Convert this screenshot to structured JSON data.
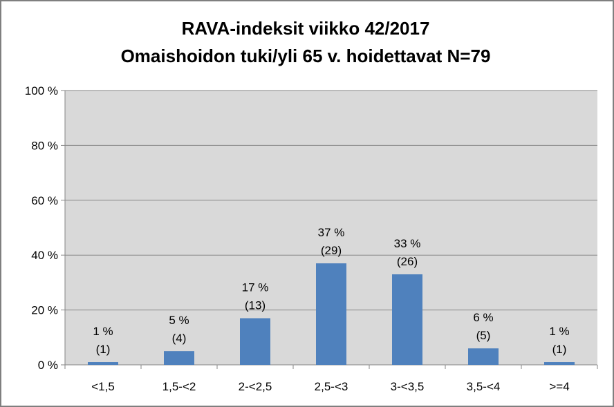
{
  "chart_data": {
    "type": "bar",
    "title": "RAVA-indeksit viikko 42/2017",
    "subtitle": "Omaishoidon tuki/yli 65 v. hoidettavat   N=79",
    "categories": [
      "<1,5",
      "1,5-<2",
      "2-<2,5",
      "2,5-<3",
      "3-<3,5",
      "3,5-<4",
      ">=4"
    ],
    "values": [
      1,
      5,
      17,
      37,
      33,
      6,
      1
    ],
    "counts": [
      1,
      4,
      13,
      29,
      26,
      5,
      1
    ],
    "value_labels": [
      "1 %",
      "5 %",
      "17 %",
      "37 %",
      "33 %",
      "6 %",
      "1 %"
    ],
    "count_labels": [
      "(1)",
      "(4)",
      "(13)",
      "(29)",
      "(26)",
      "(5)",
      "(1)"
    ],
    "yticks": [
      0,
      20,
      40,
      60,
      80,
      100
    ],
    "ytick_labels": [
      "0 %",
      "20 %",
      "40 %",
      "60 %",
      "80 %",
      "100 %"
    ],
    "ylim": [
      0,
      100
    ],
    "xlabel": "",
    "ylabel": "",
    "grid": true,
    "legend": false,
    "colors": {
      "bar": "#4f81bd",
      "plot_background": "#d9d9d9",
      "gridline": "#868686",
      "frame": "#7f7f7f"
    }
  }
}
